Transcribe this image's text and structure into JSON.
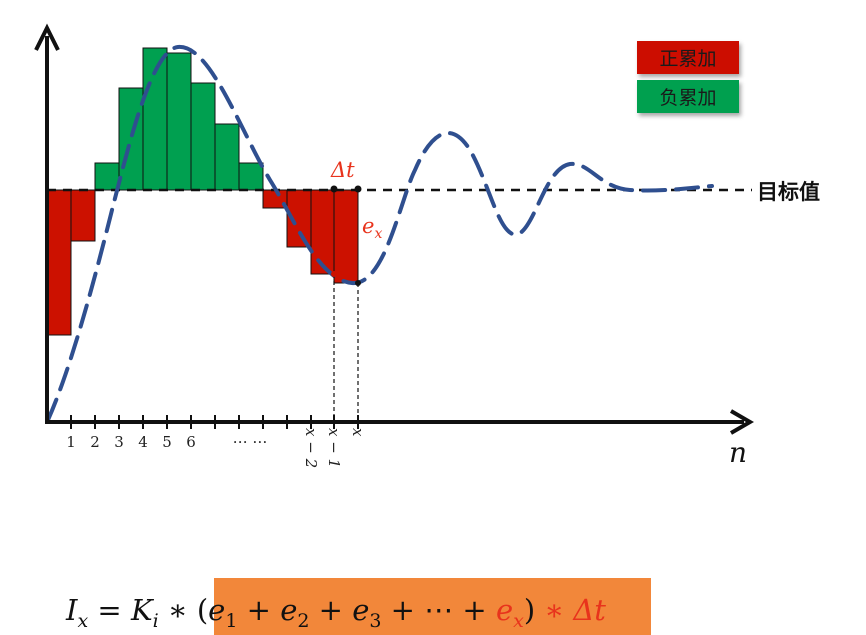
{
  "legend": {
    "positive": {
      "label": "正累加",
      "color": "#cc1100"
    },
    "negative": {
      "label": "负累加",
      "color": "#00a050"
    }
  },
  "target_label": "目标值",
  "delta_t_label": "Δt",
  "error_label": {
    "base": "e",
    "sub": "x"
  },
  "axis": {
    "x_label": "n",
    "ticks": [
      "1",
      "2",
      "3",
      "4",
      "5",
      "6",
      "… …",
      "x − 2",
      "x − 1",
      "x"
    ]
  },
  "formula": {
    "lhs": "I",
    "lhs_sub": "x",
    "eq": " = ",
    "k": "K",
    "k_sub": "i",
    "star": " ∗ ",
    "open": "(",
    "e1": "e",
    "e1_sub": "1",
    "plus": " + ",
    "e2": "e",
    "e2_sub": "2",
    "e3": "e",
    "e3_sub": "3",
    "dots": " + ⋯ + ",
    "ex": "e",
    "ex_sub": "x",
    "close": ")",
    "star2": " ∗ ",
    "dt": "Δt",
    "highlight_color": "#f2873a",
    "accent_color": "#e8331c"
  },
  "colors": {
    "curve": "#2f4f8f",
    "axis": "#111111"
  }
}
